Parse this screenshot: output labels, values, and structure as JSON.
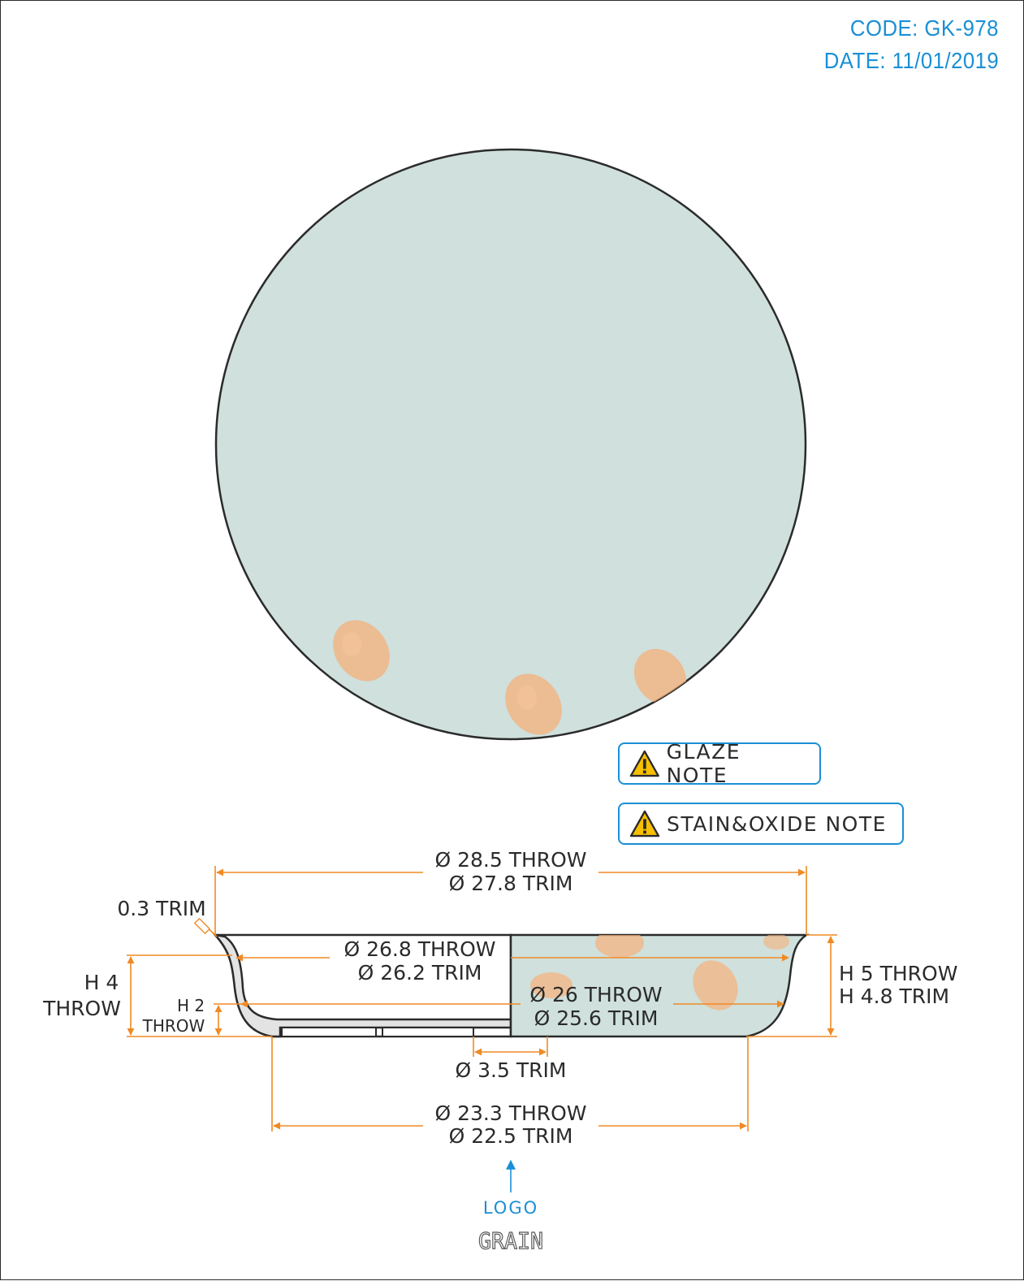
{
  "header": {
    "code": "CODE: GK-978",
    "date": "DATE: 11/01/2019"
  },
  "notes": {
    "glaze": "GLAZE NOTE",
    "stain_oxide": "STAIN&OXIDE NOTE"
  },
  "dimensions": {
    "rim_diameter_throw": "Ø 28.5 THROW",
    "rim_diameter_trim": "Ø 27.8 TRIM",
    "rim_thickness_trim": "0.3 TRIM",
    "inner_top_throw": "Ø 26.8 THROW",
    "inner_top_trim": "Ø 26.2 TRIM",
    "inner_low_throw": "Ø 26 THROW",
    "inner_low_trim": "Ø 25.6 TRIM",
    "height_left_a": "H 4",
    "height_left_b": "THROW",
    "height_small_a": "H 2",
    "height_small_b": "THROW",
    "height_right_throw": "H 5 THROW",
    "height_right_trim": "H 4.8 TRIM",
    "foot_gap_trim": "Ø 3.5 TRIM",
    "base_throw": "Ø 23.3 THROW",
    "base_trim": "Ø 22.5 TRIM"
  },
  "logo_label": "LOGO",
  "grain_label": "GRAIN",
  "colors": {
    "accent_blue": "#1a8fd6",
    "dimension_orange": "#f08a24",
    "glaze_fill": "#cfe0dd",
    "stain": "#f6b07a",
    "section_fill": "#e3e3e3",
    "outline": "#2b2b2b"
  }
}
